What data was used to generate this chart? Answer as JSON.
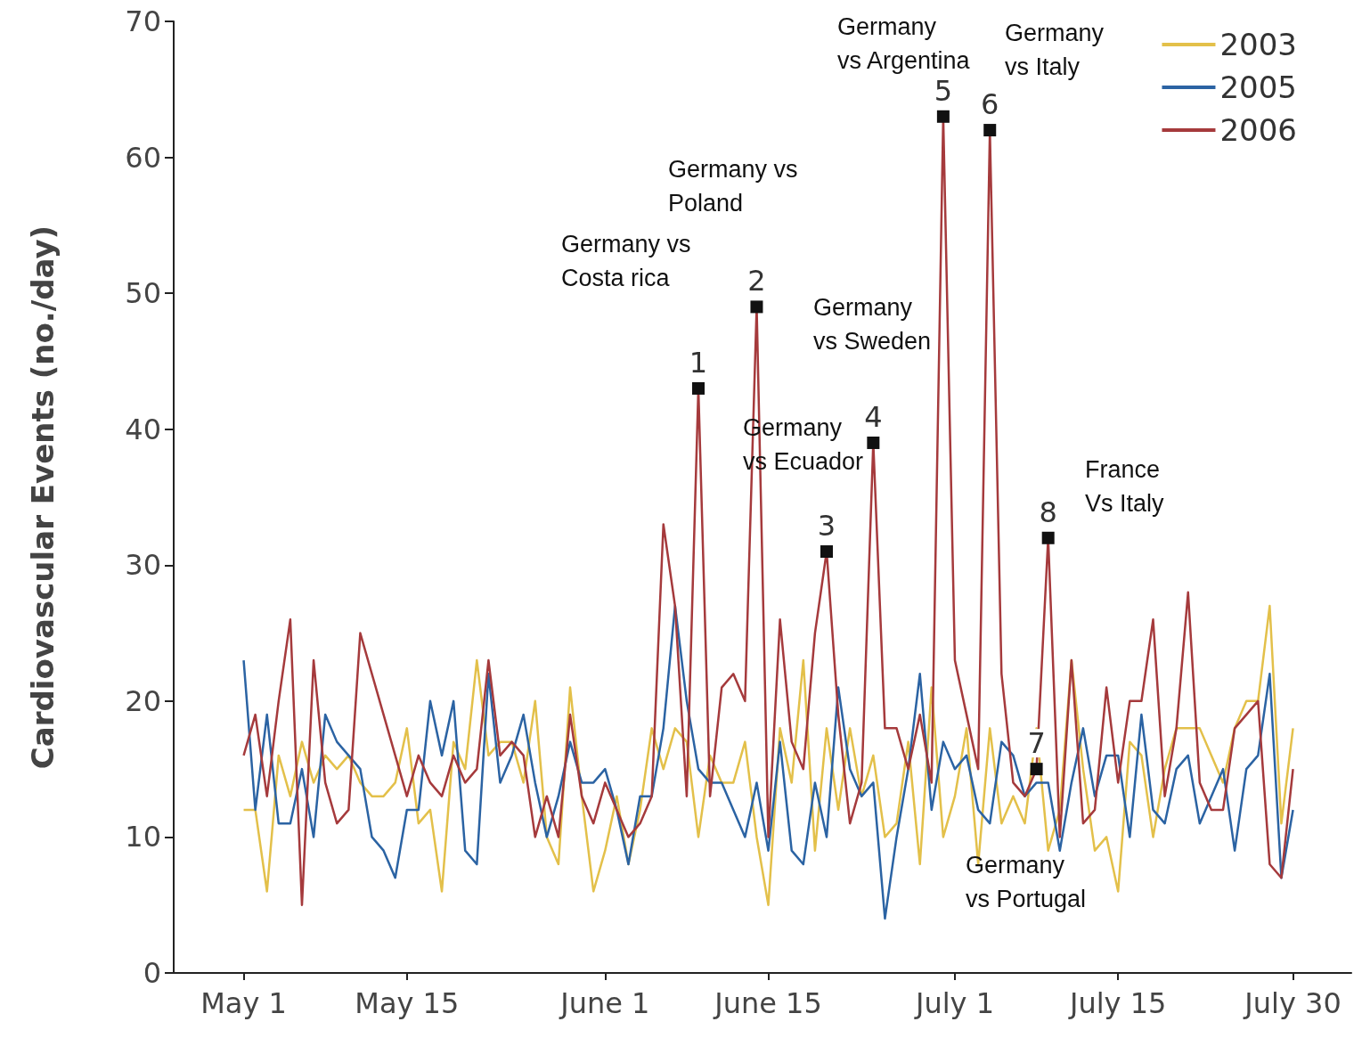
{
  "chart_data": {
    "type": "line",
    "ylabel": "Cardiovascular Events (no./day)",
    "x": [
      "--05-01",
      "--05-02",
      "--05-03",
      "--05-04",
      "--05-05",
      "--05-06",
      "--05-07",
      "--05-08",
      "--05-09",
      "--05-10",
      "--05-11",
      "--05-12",
      "--05-13",
      "--05-14",
      "--05-15",
      "--05-16",
      "--05-17",
      "--05-18",
      "--05-19",
      "--05-20",
      "--05-21",
      "--05-22",
      "--05-23",
      "--05-24",
      "--05-25",
      "--05-26",
      "--05-27",
      "--05-28",
      "--05-29",
      "--05-30",
      "--05-31",
      "--06-01",
      "--06-02",
      "--06-03",
      "--06-04",
      "--06-05",
      "--06-06",
      "--06-07",
      "--06-08",
      "--06-09",
      "--06-10",
      "--06-11",
      "--06-12",
      "--06-13",
      "--06-14",
      "--06-15",
      "--06-16",
      "--06-17",
      "--06-18",
      "--06-19",
      "--06-20",
      "--06-21",
      "--06-22",
      "--06-23",
      "--06-24",
      "--06-25",
      "--06-26",
      "--06-27",
      "--06-28",
      "--06-29",
      "--06-30",
      "--07-01",
      "--07-02",
      "--07-03",
      "--07-04",
      "--07-05",
      "--07-06",
      "--07-07",
      "--07-08",
      "--07-09",
      "--07-10",
      "--07-11",
      "--07-12",
      "--07-13",
      "--07-14",
      "--07-15",
      "--07-16",
      "--07-17",
      "--07-18",
      "--07-19",
      "--07-20",
      "--07-21",
      "--07-22",
      "--07-23",
      "--07-24",
      "--07-25",
      "--07-26",
      "--07-27",
      "--07-28",
      "--07-29",
      "--07-30"
    ],
    "series": [
      {
        "name": "2003",
        "color": "#e3c04a",
        "values": [
          12,
          12,
          6,
          16,
          13,
          17,
          14,
          16,
          15,
          16,
          14,
          13,
          13,
          14,
          18,
          11,
          12,
          6,
          17,
          15,
          23,
          16,
          17,
          17,
          14,
          20,
          10,
          8,
          21,
          13,
          6,
          9,
          13,
          8,
          12,
          18,
          15,
          18,
          17,
          10,
          16,
          14,
          14,
          17,
          10,
          5,
          18,
          14,
          23,
          9,
          18,
          12,
          18,
          13,
          16,
          10,
          11,
          17,
          8,
          21,
          10,
          13,
          18,
          8,
          18,
          11,
          13,
          11,
          18,
          9,
          12,
          23,
          15,
          9,
          10,
          6,
          17,
          16,
          10,
          15,
          18,
          18,
          18,
          16,
          14,
          18,
          20,
          20,
          27,
          11,
          18
        ]
      },
      {
        "name": "2005",
        "color": "#2b63a3",
        "values": [
          23,
          12,
          19,
          11,
          11,
          15,
          10,
          19,
          17,
          16,
          15,
          10,
          9,
          7,
          12,
          12,
          20,
          16,
          20,
          9,
          8,
          22,
          14,
          16,
          19,
          14,
          10,
          13,
          17,
          14,
          14,
          15,
          12,
          8,
          13,
          13,
          18,
          27,
          20,
          15,
          14,
          14,
          12,
          10,
          14,
          9,
          17,
          9,
          8,
          14,
          10,
          21,
          15,
          13,
          14,
          4,
          10,
          15,
          22,
          12,
          17,
          15,
          16,
          12,
          11,
          17,
          16,
          13,
          14,
          14,
          9,
          14,
          18,
          13,
          16,
          16,
          10,
          19,
          12,
          11,
          15,
          16,
          11,
          13,
          15,
          9,
          15,
          16,
          22,
          7,
          12
        ]
      },
      {
        "name": "2006",
        "color": "#a53a3c",
        "values": [
          16,
          19,
          13,
          20,
          26,
          5,
          23,
          14,
          11,
          12,
          25,
          22,
          19,
          16,
          13,
          16,
          14,
          13,
          16,
          14,
          15,
          23,
          16,
          17,
          16,
          10,
          13,
          10,
          19,
          13,
          11,
          14,
          12,
          10,
          11,
          13,
          33,
          27,
          13,
          43,
          13,
          21,
          22,
          20,
          49,
          10,
          26,
          17,
          15,
          25,
          31,
          19,
          11,
          14,
          39,
          18,
          18,
          15,
          19,
          14,
          63,
          23,
          19,
          15,
          62,
          22,
          14,
          13,
          15,
          32,
          10,
          23,
          11,
          12,
          21,
          14,
          20,
          20,
          26,
          13,
          18,
          28,
          14,
          12,
          12,
          18,
          19,
          20,
          8,
          7,
          15
        ]
      }
    ],
    "xlim": [
      "--04-25",
      "--08-04"
    ],
    "xticks": [
      {
        "value": "--05-01",
        "label": "May 1"
      },
      {
        "value": "--05-15",
        "label": "May 15"
      },
      {
        "value": "--06-01",
        "label": "June 1"
      },
      {
        "value": "--06-15",
        "label": "June 15"
      },
      {
        "value": "--07-01",
        "label": "July 1"
      },
      {
        "value": "--07-15",
        "label": "July 15"
      },
      {
        "value": "--07-30",
        "label": "July 30"
      }
    ],
    "ylim": [
      0,
      70
    ],
    "yticks": [
      0,
      10,
      20,
      30,
      40,
      50,
      60,
      70
    ],
    "grid": false,
    "legend": "top right",
    "marker": "none",
    "line_style": "solid",
    "annotations": [
      {
        "text": "1",
        "x": "--06-09",
        "y": 43
      },
      {
        "text": "2",
        "x": "--06-14",
        "y": 49
      },
      {
        "text": "3",
        "x": "--06-20",
        "y": 31
      },
      {
        "text": "4",
        "x": "--06-24",
        "y": 39
      },
      {
        "text": "5",
        "x": "--06-30",
        "y": 63
      },
      {
        "text": "6",
        "x": "--07-04",
        "y": 62
      },
      {
        "text": "7",
        "x": "--07-08",
        "y": 15
      },
      {
        "text": "8",
        "x": "--07-09",
        "y": 32
      },
      "Germany vs\nCosta rica",
      "Germany vs\nPoland",
      "Germany\nvs Ecuador",
      "Germany\nvs Sweden",
      "Germany\nvs Argentina",
      "Germany\nvs Italy",
      "Germany\nvs Portugal",
      "France\nVs Italy"
    ]
  }
}
